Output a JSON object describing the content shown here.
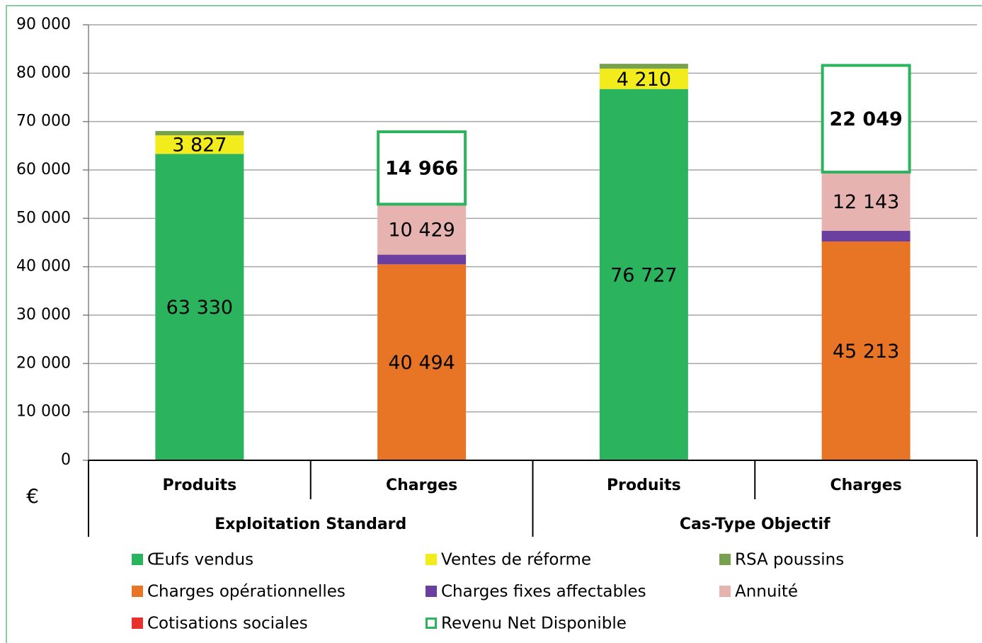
{
  "chart_data": {
    "type": "stacked_bar",
    "categories": [
      "Produits",
      "Charges",
      "Produits",
      "Charges"
    ],
    "groups": [
      "Exploitation Standard",
      "Cas-Type Objectif"
    ],
    "y_label": "€",
    "ylim": [
      0,
      90000
    ],
    "yticks": [
      0,
      {
        "value": 10000,
        "label": "10 000"
      },
      {
        "value": 20000,
        "label": "20 000"
      },
      {
        "value": 30000,
        "label": "30 000"
      },
      {
        "value": 40000,
        "label": "40 000"
      },
      {
        "value": 50000,
        "label": "50 000"
      },
      {
        "value": 60000,
        "label": "60 000"
      },
      {
        "value": 70000,
        "label": "70 000"
      },
      {
        "value": 80000,
        "label": "80 000"
      },
      {
        "value": 90000,
        "label": "90 000"
      }
    ],
    "grid": true,
    "series": [
      {
        "name": "Œufs vendus",
        "color": "#2bb35e",
        "values": [
          63330,
          null,
          76727,
          null
        ],
        "value_labels": [
          "63 330",
          null,
          "76 727",
          null
        ]
      },
      {
        "name": "Ventes de réforme",
        "color": "#f2ec1d",
        "values": [
          3827,
          null,
          4210,
          null
        ],
        "value_labels": [
          "3 827",
          null,
          "4 210",
          null
        ]
      },
      {
        "name": "RSA poussins",
        "color": "#77a14f",
        "values": [
          900,
          null,
          1000,
          null
        ]
      },
      {
        "name": "Charges opérationnelles",
        "color": "#e87425",
        "values": [
          null,
          40494,
          null,
          45213
        ],
        "value_labels": [
          null,
          "40 494",
          null,
          "45 213"
        ]
      },
      {
        "name": "Charges fixes affectables",
        "color": "#6a3fa0",
        "values": [
          null,
          2000,
          null,
          2200
        ]
      },
      {
        "name": "Annuité",
        "color": "#e6b3b1",
        "values": [
          null,
          10429,
          null,
          12143
        ],
        "value_labels": [
          null,
          "10 429",
          null,
          "12 143"
        ]
      },
      {
        "name": "Cotisations sociales",
        "color": "#e8312c",
        "values": [
          null,
          null,
          null,
          null
        ]
      },
      {
        "name": "Revenu Net Disponible",
        "color": "#2bb35e",
        "outline": true,
        "values": [
          null,
          14966,
          null,
          22049
        ],
        "value_labels": [
          null,
          "14 966",
          null,
          "22 049"
        ]
      }
    ]
  }
}
